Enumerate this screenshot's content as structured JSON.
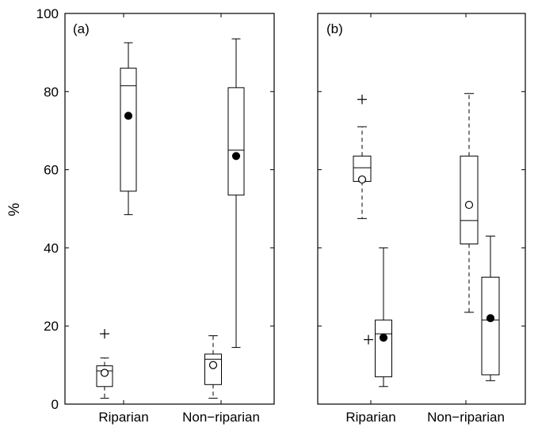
{
  "chart_data": [
    {
      "type": "box",
      "panel_label": "(a)",
      "ylabel": "%",
      "ylim": [
        0,
        100
      ],
      "yticks": [
        0,
        20,
        40,
        60,
        80,
        100
      ],
      "categories": [
        "Riparian",
        "Non−riparian"
      ],
      "boxes": [
        {
          "category": "Riparian",
          "style": "dashed",
          "whisker_low": 1.5,
          "q1": 4.5,
          "median": 8.5,
          "q3": 9.8,
          "whisker_high": 11.8,
          "mean": 8.0,
          "mean_marker": "open",
          "outliers": [
            18.0
          ]
        },
        {
          "category": "Riparian",
          "style": "solid",
          "whisker_low": 48.5,
          "q1": 54.5,
          "median": 81.5,
          "q3": 86.0,
          "whisker_high": 92.5,
          "mean": 73.8,
          "mean_marker": "filled",
          "outliers": []
        },
        {
          "category": "Non−riparian",
          "style": "dashed",
          "whisker_low": 1.5,
          "q1": 5.0,
          "median": 11.5,
          "q3": 12.8,
          "whisker_high": 17.5,
          "mean": 10.0,
          "mean_marker": "open",
          "outliers": []
        },
        {
          "category": "Non−riparian",
          "style": "solid",
          "whisker_low": 14.5,
          "q1": 53.5,
          "median": 65.0,
          "q3": 81.0,
          "whisker_high": 93.5,
          "mean": 63.5,
          "mean_marker": "filled",
          "outliers": []
        }
      ]
    },
    {
      "type": "box",
      "panel_label": "(b)",
      "ylim": [
        0,
        100
      ],
      "categories": [
        "Riparian",
        "Non−riparian"
      ],
      "boxes": [
        {
          "category": "Riparian",
          "style": "dashed",
          "whisker_low": 47.5,
          "q1": 57.0,
          "median": 60.5,
          "q3": 63.5,
          "whisker_high": 71.0,
          "mean": 57.5,
          "mean_marker": "open",
          "outliers": [
            78.0
          ]
        },
        {
          "category": "Riparian",
          "style": "solid",
          "whisker_low": 4.5,
          "q1": 7.0,
          "median": 18.0,
          "q3": 21.5,
          "whisker_high": 40.0,
          "mean": 17.0,
          "mean_marker": "filled",
          "outliers": [
            16.5
          ]
        },
        {
          "category": "Non−riparian",
          "style": "dashed",
          "whisker_low": 23.5,
          "q1": 41.0,
          "median": 47.0,
          "q3": 63.5,
          "whisker_high": 79.5,
          "mean": 51.0,
          "mean_marker": "open",
          "outliers": []
        },
        {
          "category": "Non−riparian",
          "style": "solid",
          "whisker_low": 6.0,
          "q1": 7.5,
          "median": 21.5,
          "q3": 32.5,
          "whisker_high": 43.0,
          "mean": 22.0,
          "mean_marker": "filled",
          "outliers": []
        }
      ]
    }
  ]
}
